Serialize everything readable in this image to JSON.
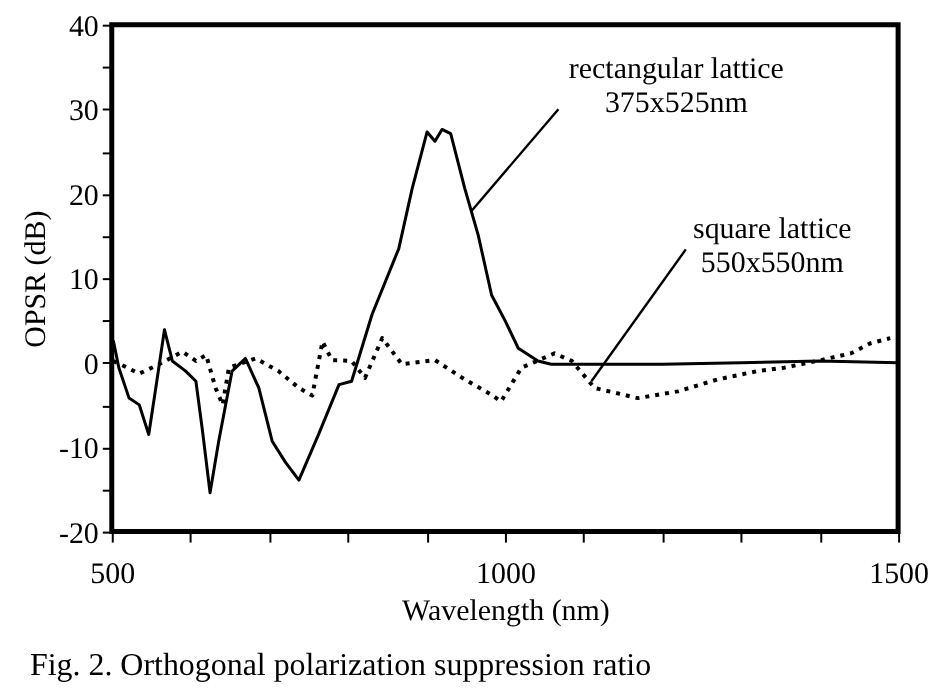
{
  "chart_data": {
    "type": "line",
    "xlabel": "Wavelength (nm)",
    "ylabel": "OPSR (dB)",
    "xlim": [
      500,
      1500
    ],
    "ylim": [
      -20,
      40
    ],
    "xticks": [
      500,
      {
        "value": 600,
        "label": null
      },
      {
        "value": 700,
        "label": null
      },
      {
        "value": 800,
        "label": null
      },
      {
        "value": 900,
        "label": null
      },
      1000,
      {
        "value": 1100,
        "label": null
      },
      {
        "value": 1200,
        "label": null
      },
      {
        "value": 1300,
        "label": null
      },
      {
        "value": 1400,
        "label": null
      },
      1500
    ],
    "yticks": [
      -20,
      {
        "value": -15,
        "label": null
      },
      -10,
      {
        "value": -5,
        "label": null
      },
      0,
      {
        "value": 5,
        "label": null
      },
      10,
      {
        "value": 15,
        "label": null
      },
      20,
      {
        "value": 25,
        "label": null
      },
      30,
      {
        "value": 35,
        "label": null
      },
      40
    ],
    "grid": false,
    "marker": "none",
    "series": [
      {
        "color": "#000000",
        "line_style": "solid",
        "x": [
          502,
          509,
          522,
          535,
          547,
          556,
          567,
          577,
          594,
          607,
          615,
          625,
          636,
          653,
          670,
          687,
          704,
          721,
          738,
          763,
          789,
          805,
          831,
          865,
          882,
          901,
          911,
          920,
          931,
          949,
          966,
          983,
          1000,
          1017,
          1042,
          1059,
          1200,
          1300,
          1400,
          1500
        ],
        "values": [
          2.6,
          -0.6,
          -4.2,
          -5,
          -8.5,
          -3,
          3.9,
          0.2,
          -1,
          -2.2,
          -7.8,
          -15.4,
          -9.3,
          -1,
          0.5,
          -3,
          -9.3,
          -11.8,
          -13.9,
          -8.5,
          -2.6,
          -2.2,
          5.7,
          13.5,
          20.6,
          27.3,
          26.2,
          27.6,
          27.1,
          20.6,
          15.1,
          8,
          5,
          1.7,
          0.2,
          -0.2,
          -0.2,
          0,
          0.2,
          0
        ]
      },
      {
        "color": "#000000",
        "line_style": "dotted",
        "x": [
          502,
          535,
          560,
          590,
          607,
          620,
          632,
          641,
          649,
          683,
          712,
          738,
          755,
          768,
          780,
          805,
          822,
          844,
          869,
          911,
          949,
          983,
          995,
          1021,
          1063,
          1085,
          1114,
          1169,
          1220,
          1270,
          1321,
          1355,
          1397,
          1440,
          1465,
          1490
        ],
        "values": [
          0.2,
          -1.3,
          -0.2,
          1.3,
          0.2,
          0.9,
          -3,
          -5,
          -0.6,
          0.5,
          -1,
          -3,
          -3.9,
          2.5,
          0.3,
          0.2,
          -1.8,
          2.9,
          -0.2,
          0.3,
          -2,
          -3.8,
          -4.6,
          -0.6,
          1.1,
          0.2,
          -3,
          -4.2,
          -3.4,
          -2,
          -1,
          -0.6,
          0.2,
          1.1,
          2.3,
          2.9
        ]
      }
    ],
    "annotations": [
      {
        "text": "rectangular lattice\n375x525nm",
        "x": 958,
        "y": 18
      },
      {
        "text": "square lattice\n550x550nm",
        "x": 1110,
        "y": -2.2
      },
      "Fig. 2. Orthogonal polarization suppression ratio"
    ]
  }
}
